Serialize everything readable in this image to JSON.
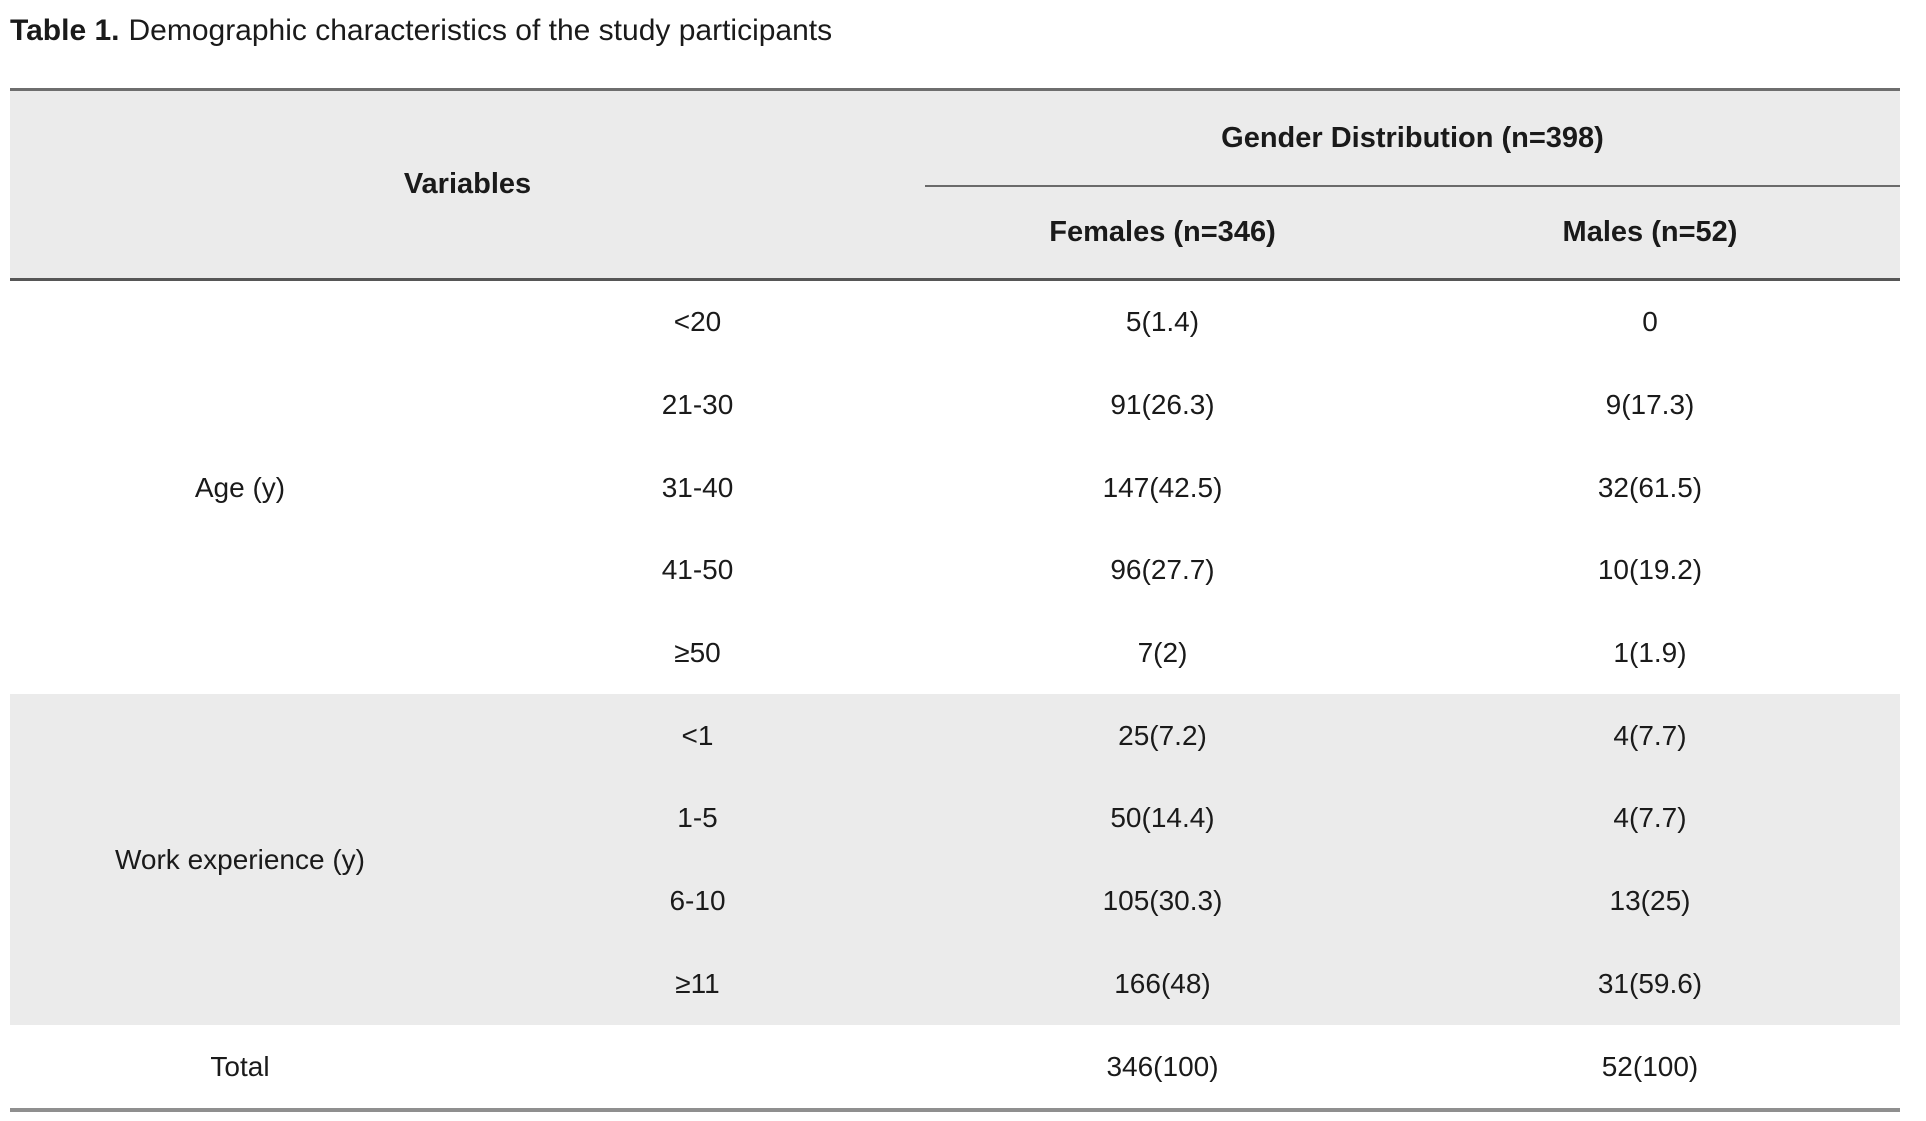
{
  "title": {
    "bold": "Table 1.",
    "rest": "Demographic characteristics of the study participants"
  },
  "table": {
    "header": {
      "variables": "Variables",
      "gender_distribution": "Gender Distribution (n=398)",
      "females": "Females (n=346)",
      "males": "Males (n=52)"
    },
    "groups": [
      {
        "label": "Age (y)",
        "rows": [
          {
            "category": "<20",
            "females": "5(1.4)",
            "males": "0"
          },
          {
            "category": "21-30",
            "females": "91(26.3)",
            "males": "9(17.3)"
          },
          {
            "category": "31-40",
            "females": "147(42.5)",
            "males": "32(61.5)"
          },
          {
            "category": "41-50",
            "females": "96(27.7)",
            "males": "10(19.2)"
          },
          {
            "category": "≥50",
            "females": "7(2)",
            "males": "1(1.9)"
          }
        ]
      },
      {
        "label": "Work experience (y)",
        "rows": [
          {
            "category": "<1",
            "females": "25(7.2)",
            "males": "4(7.7)"
          },
          {
            "category": "1-5",
            "females": "50(14.4)",
            "males": "4(7.7)"
          },
          {
            "category": "6-10",
            "females": "105(30.3)",
            "males": "13(25)"
          },
          {
            "category": "≥11",
            "females": "166(48)",
            "males": "31(59.6)"
          }
        ]
      }
    ],
    "total": {
      "label": "Total",
      "females": "346(100)",
      "males": "52(100)"
    }
  },
  "colors": {
    "shaded_band": "#ebebeb",
    "rule_top": "#6e6e6e",
    "rule_header_bottom": "#565656",
    "rule_span_divider": "#6a6a6a",
    "rule_table_bottom": "#8f8f8f"
  }
}
